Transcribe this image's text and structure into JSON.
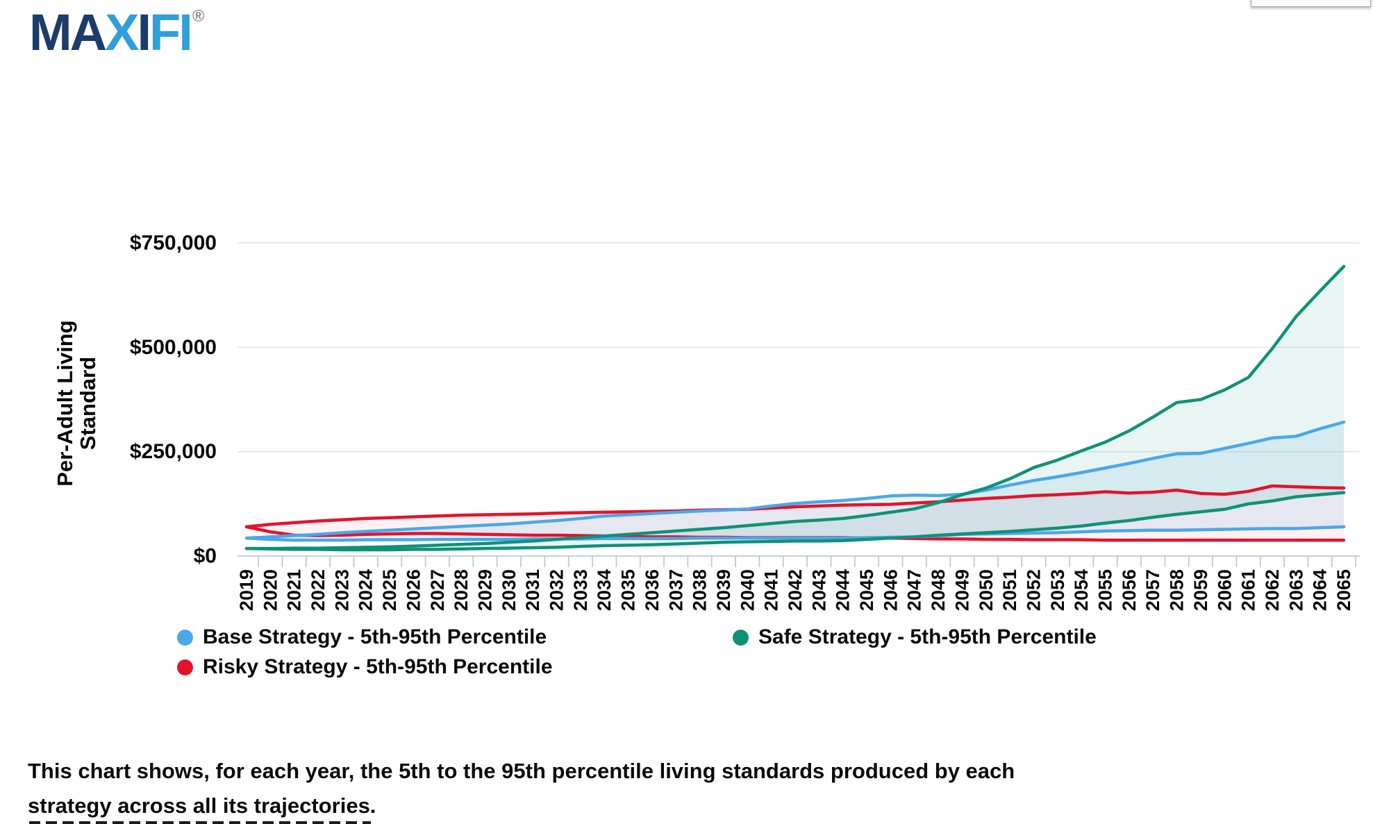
{
  "logo": {
    "segments": [
      {
        "text": "MA",
        "color": "#1b3c6c"
      },
      {
        "text": "X",
        "color": "#2e9fd9"
      },
      {
        "text": "I",
        "color": "#1b3c6c"
      },
      {
        "text": "FI",
        "color": "#2e9fd9"
      }
    ],
    "registered_mark": "®"
  },
  "caption": {
    "lines": [
      "This chart shows, for each year, the 5th to the 95th percentile living standards produced by each",
      "strategy across all its trajectories."
    ]
  },
  "chart_data": {
    "type": "area",
    "title": "",
    "ylabel": "Per-Adult Living Standard",
    "ylabel_lines": [
      "Per-Adult Living",
      "Standard"
    ],
    "xlabel": "",
    "grid": "horizontal",
    "legend_position": "bottom",
    "ylim": [
      0,
      760000
    ],
    "yticks": [
      {
        "value": 0,
        "label": "$0"
      },
      {
        "value": 250000,
        "label": "$250,000"
      },
      {
        "value": 500000,
        "label": "$500,000"
      },
      {
        "value": 750000,
        "label": "$750,000"
      }
    ],
    "x": [
      2019,
      2020,
      2021,
      2022,
      2023,
      2024,
      2025,
      2026,
      2027,
      2028,
      2029,
      2030,
      2031,
      2032,
      2033,
      2034,
      2035,
      2036,
      2037,
      2038,
      2039,
      2040,
      2041,
      2042,
      2043,
      2044,
      2045,
      2046,
      2047,
      2048,
      2049,
      2050,
      2051,
      2052,
      2053,
      2054,
      2055,
      2056,
      2057,
      2058,
      2059,
      2060,
      2061,
      2062,
      2063,
      2064,
      2065
    ],
    "series": [
      {
        "name": "Base Strategy - 5th-95th Percentile",
        "slug": "base-strategy",
        "color": "#4ba7e9",
        "fill": "rgba(75,167,233,0.13)",
        "p95": [
          43000,
          46000,
          49000,
          52000,
          56000,
          59000,
          62000,
          65000,
          68000,
          71000,
          74000,
          77000,
          81000,
          85000,
          90000,
          96000,
          99000,
          102000,
          105000,
          108000,
          110000,
          113000,
          120000,
          126000,
          130000,
          133000,
          138000,
          144000,
          146000,
          145000,
          148000,
          158000,
          170000,
          181000,
          190000,
          200000,
          211000,
          222000,
          234000,
          245000,
          246000,
          258000,
          270000,
          283000,
          287000,
          305000,
          321000
        ],
        "p5": [
          43000,
          40000,
          38000,
          38000,
          38000,
          39000,
          39000,
          39000,
          40000,
          40000,
          40000,
          40000,
          41000,
          41000,
          41000,
          42000,
          42000,
          42000,
          42000,
          43000,
          43000,
          43000,
          43000,
          43000,
          43000,
          43000,
          44000,
          45000,
          46000,
          48000,
          52000,
          53000,
          54000,
          55000,
          56000,
          58000,
          60000,
          61000,
          62000,
          62000,
          63000,
          64000,
          65000,
          66000,
          66000,
          68000,
          70000
        ]
      },
      {
        "name": "Safe Strategy - 5th-95th Percentile",
        "slug": "safe-strategy",
        "color": "#0f9178",
        "fill": "rgba(15,145,120,0.09)",
        "p95": [
          18000,
          18000,
          19000,
          19000,
          20000,
          21000,
          22000,
          24000,
          26000,
          28000,
          30000,
          33000,
          36000,
          40000,
          44000,
          48000,
          52000,
          56000,
          60000,
          64000,
          68000,
          73000,
          78000,
          83000,
          86000,
          90000,
          97000,
          105000,
          113000,
          128000,
          147000,
          163000,
          185000,
          212000,
          230000,
          252000,
          273000,
          300000,
          333000,
          368000,
          375000,
          398000,
          428000,
          497000,
          574000,
          635000,
          694000
        ],
        "p5": [
          18000,
          17000,
          16000,
          16000,
          15000,
          15000,
          15000,
          16000,
          16000,
          17000,
          18000,
          19000,
          20000,
          21000,
          23000,
          25000,
          26000,
          27000,
          29000,
          31000,
          33000,
          34000,
          35000,
          36000,
          36000,
          37000,
          40000,
          43000,
          46000,
          50000,
          53000,
          56000,
          59000,
          63000,
          67000,
          72000,
          79000,
          85000,
          93000,
          100000,
          106000,
          112000,
          125000,
          132000,
          142000,
          147000,
          152000
        ]
      },
      {
        "name": "Risky Strategy - 5th-95th Percentile",
        "slug": "risky-strategy",
        "color": "#e3132b",
        "fill": "rgba(227,19,43,0.06)",
        "p95": [
          70000,
          76000,
          80000,
          84000,
          87000,
          90000,
          92000,
          94000,
          96000,
          98000,
          99000,
          100000,
          101000,
          103000,
          104000,
          105000,
          106000,
          107000,
          108000,
          110000,
          111000,
          112000,
          115000,
          118000,
          120000,
          122000,
          123000,
          124000,
          127000,
          130000,
          134000,
          138000,
          141000,
          145000,
          147000,
          150000,
          154000,
          151000,
          153000,
          158000,
          150000,
          148000,
          155000,
          168000,
          166000,
          164000,
          163000
        ],
        "p5": [
          70000,
          58000,
          50000,
          49000,
          50000,
          52000,
          53000,
          54000,
          54000,
          53000,
          52000,
          51000,
          50000,
          50000,
          49000,
          48000,
          47000,
          46000,
          46000,
          45000,
          45000,
          44000,
          44000,
          44000,
          44000,
          44000,
          43000,
          43000,
          42000,
          41000,
          41000,
          40000,
          40000,
          39000,
          39000,
          39000,
          38000,
          38000,
          38000,
          38000,
          38000,
          38000,
          38000,
          38000,
          38000,
          38000,
          38000
        ]
      }
    ]
  }
}
